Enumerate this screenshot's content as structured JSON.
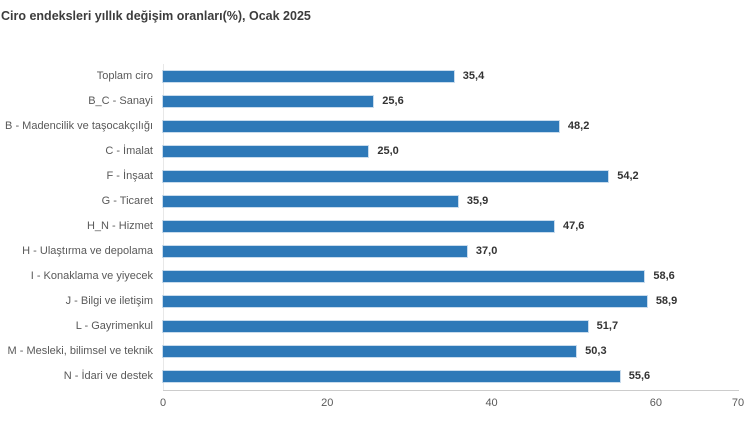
{
  "title": "Ciro endeksleri yıllık değişim oranları(%), Ocak 2025",
  "colors": {
    "bar": "#2e79b8",
    "axis_line": "#cccccc",
    "category_text": "#595959",
    "value_text": "#333333",
    "title_text": "#3c3c3c"
  },
  "chart_data": {
    "type": "bar",
    "orientation": "horizontal",
    "title": "Ciro endeksleri yıllık değişim oranları(%), Ocak 2025",
    "categories": [
      "Toplam ciro",
      "B_C - Sanayi",
      "B - Madencilik ve taşocakçılığı",
      "C - İmalat",
      "F - İnşaat",
      "G - Ticaret",
      "H_N - Hizmet",
      "H - Ulaştırma ve depolama",
      "I - Konaklama ve yiyecek",
      "J - Bilgi ve iletişim",
      "L - Gayrimenkul",
      "M - Mesleki, bilimsel ve teknik",
      "N - İdari ve destek"
    ],
    "values": [
      35.4,
      25.6,
      48.2,
      25.0,
      54.2,
      35.9,
      47.6,
      37.0,
      58.6,
      58.9,
      51.7,
      50.3,
      55.6
    ],
    "value_labels": [
      "35,4",
      "25,6",
      "48,2",
      "25,0",
      "54,2",
      "35,9",
      "47,6",
      "37,0",
      "58,6",
      "58,9",
      "51,7",
      "50,3",
      "55,6"
    ],
    "xlabel": "",
    "ylabel": "",
    "xlim": [
      0,
      70
    ],
    "x_ticks": [
      0,
      20,
      40,
      60,
      70
    ],
    "x_tick_labels": [
      "0",
      "20",
      "40",
      "60",
      "70"
    ],
    "grid": false,
    "legend": false
  }
}
